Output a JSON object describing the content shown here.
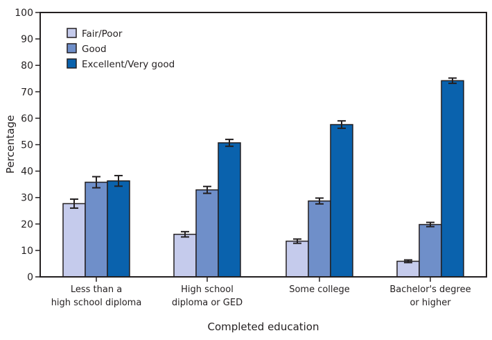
{
  "chart_data": {
    "type": "bar",
    "title": "",
    "xlabel": "Completed education",
    "ylabel": "Percentage",
    "ylim": [
      0,
      100
    ],
    "yticks": [
      0,
      10,
      20,
      30,
      40,
      50,
      60,
      70,
      80,
      90,
      100
    ],
    "grid": false,
    "legend_placement": "top-left",
    "categories": [
      [
        "Less than a",
        "high school diploma"
      ],
      [
        "High school",
        "diploma or GED"
      ],
      [
        "Some college"
      ],
      [
        "Bachelor's degree",
        "or higher"
      ]
    ],
    "series": [
      {
        "name": "Fair/Poor",
        "color": "#c5cbec",
        "values": [
          27.7,
          16.1,
          13.5,
          5.9
        ],
        "error": [
          1.7,
          1.0,
          0.8,
          0.5
        ]
      },
      {
        "name": "Good",
        "color": "#6f8fc9",
        "values": [
          35.8,
          32.9,
          28.7,
          19.8
        ],
        "error": [
          2.1,
          1.3,
          1.1,
          0.8
        ]
      },
      {
        "name": "Excellent/Very good",
        "color": "#0a62ad",
        "values": [
          36.3,
          50.7,
          57.6,
          74.2
        ],
        "error": [
          2.0,
          1.3,
          1.4,
          1.0
        ]
      }
    ]
  }
}
